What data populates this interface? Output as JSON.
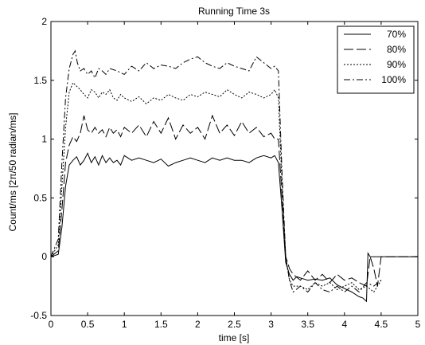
{
  "chart_data": {
    "type": "line",
    "title": "Running Time 3s",
    "xlabel": "time [s]",
    "ylabel": "Count/ms [2π/50 radian/ms]",
    "xlim": [
      0,
      5
    ],
    "ylim": [
      -0.5,
      2
    ],
    "xticks": [
      0,
      0.5,
      1,
      1.5,
      2,
      2.5,
      3,
      3.5,
      4,
      4.5,
      5
    ],
    "xtick_labels": [
      "0",
      "0.5",
      "1",
      "1.5",
      "2",
      "2.5",
      "3",
      "3.5",
      "4",
      "4.5",
      "5"
    ],
    "yticks": [
      -0.5,
      0,
      0.5,
      1,
      1.5,
      2
    ],
    "ytick_labels": [
      "-0.5",
      "0",
      "0.5",
      "1",
      "1.5",
      "2"
    ],
    "grid": false,
    "legend_position": "top-right",
    "series": [
      {
        "name": "70%",
        "dash": "solid",
        "x": [
          0,
          0.1,
          0.15,
          0.2,
          0.25,
          0.3,
          0.35,
          0.4,
          0.45,
          0.5,
          0.55,
          0.6,
          0.65,
          0.7,
          0.75,
          0.8,
          0.85,
          0.9,
          0.95,
          1.0,
          1.1,
          1.2,
          1.3,
          1.4,
          1.5,
          1.6,
          1.7,
          1.8,
          1.9,
          2.0,
          2.1,
          2.2,
          2.3,
          2.4,
          2.5,
          2.6,
          2.7,
          2.8,
          2.9,
          3.0,
          3.05,
          3.1,
          3.15,
          3.2,
          3.25,
          3.3,
          3.35,
          3.4,
          3.5,
          3.6,
          3.7,
          3.8,
          3.9,
          4.0,
          4.1,
          4.2,
          4.25,
          4.3,
          4.32,
          4.35,
          4.4,
          4.5,
          4.6,
          4.7,
          5.0
        ],
        "y": [
          0,
          0.02,
          0.25,
          0.6,
          0.78,
          0.82,
          0.85,
          0.78,
          0.82,
          0.88,
          0.8,
          0.85,
          0.78,
          0.86,
          0.8,
          0.84,
          0.8,
          0.82,
          0.78,
          0.86,
          0.82,
          0.84,
          0.82,
          0.8,
          0.83,
          0.77,
          0.8,
          0.82,
          0.84,
          0.82,
          0.8,
          0.84,
          0.82,
          0.84,
          0.82,
          0.82,
          0.8,
          0.84,
          0.86,
          0.84,
          0.86,
          0.8,
          0.4,
          -0.05,
          -0.15,
          -0.2,
          -0.17,
          -0.18,
          -0.2,
          -0.19,
          -0.2,
          -0.18,
          -0.24,
          -0.27,
          -0.3,
          -0.34,
          -0.35,
          -0.38,
          0.03,
          0.0,
          0.0,
          0.0,
          0.0,
          0.0,
          0.0
        ]
      },
      {
        "name": "80%",
        "dash": "longdash",
        "x": [
          0,
          0.1,
          0.15,
          0.2,
          0.25,
          0.3,
          0.35,
          0.4,
          0.45,
          0.5,
          0.55,
          0.6,
          0.65,
          0.7,
          0.75,
          0.8,
          0.85,
          0.9,
          0.95,
          1.0,
          1.1,
          1.2,
          1.3,
          1.4,
          1.5,
          1.6,
          1.7,
          1.8,
          1.9,
          2.0,
          2.1,
          2.2,
          2.3,
          2.4,
          2.5,
          2.6,
          2.7,
          2.8,
          2.9,
          3.0,
          3.05,
          3.1,
          3.15,
          3.2,
          3.25,
          3.3,
          3.4,
          3.5,
          3.6,
          3.7,
          3.8,
          3.9,
          4.0,
          4.1,
          4.2,
          4.3,
          4.35,
          4.4,
          4.45,
          4.5,
          4.6,
          4.7,
          5.0
        ],
        "y": [
          0,
          0.05,
          0.4,
          0.8,
          0.95,
          1.02,
          0.98,
          1.05,
          1.2,
          1.08,
          1.05,
          1.1,
          1.05,
          1.08,
          1.02,
          1.1,
          1.05,
          1.08,
          1.02,
          1.1,
          1.05,
          1.12,
          1.02,
          1.15,
          1.05,
          1.18,
          1.0,
          1.12,
          1.05,
          1.1,
          1.0,
          1.2,
          1.05,
          1.12,
          1.03,
          1.15,
          1.05,
          1.1,
          1.02,
          1.05,
          1.0,
          1.0,
          0.5,
          0.0,
          -0.1,
          -0.15,
          -0.2,
          -0.12,
          -0.2,
          -0.15,
          -0.22,
          -0.15,
          -0.2,
          -0.18,
          -0.22,
          -0.25,
          0.0,
          -0.1,
          -0.25,
          0.0,
          0.0,
          0.0,
          0.0
        ]
      },
      {
        "name": "90%",
        "dash": "dotted",
        "x": [
          0,
          0.1,
          0.15,
          0.2,
          0.25,
          0.3,
          0.35,
          0.4,
          0.45,
          0.5,
          0.55,
          0.6,
          0.65,
          0.7,
          0.75,
          0.8,
          0.85,
          0.9,
          0.95,
          1.0,
          1.1,
          1.2,
          1.3,
          1.4,
          1.5,
          1.6,
          1.7,
          1.8,
          1.9,
          2.0,
          2.1,
          2.2,
          2.3,
          2.4,
          2.5,
          2.6,
          2.7,
          2.8,
          2.9,
          3.0,
          3.05,
          3.1,
          3.15,
          3.2,
          3.25,
          3.3,
          3.4,
          3.5,
          3.6,
          3.7,
          3.8,
          3.9,
          4.0,
          4.1,
          4.2,
          4.3,
          4.4,
          4.5
        ],
        "y": [
          0,
          0.1,
          0.6,
          1.1,
          1.4,
          1.48,
          1.45,
          1.42,
          1.38,
          1.35,
          1.42,
          1.4,
          1.35,
          1.4,
          1.38,
          1.42,
          1.35,
          1.33,
          1.38,
          1.35,
          1.32,
          1.36,
          1.3,
          1.35,
          1.33,
          1.38,
          1.35,
          1.33,
          1.38,
          1.36,
          1.4,
          1.38,
          1.36,
          1.42,
          1.38,
          1.35,
          1.4,
          1.38,
          1.35,
          1.38,
          1.42,
          1.35,
          0.6,
          0.0,
          -0.2,
          -0.25,
          -0.25,
          -0.28,
          -0.22,
          -0.25,
          -0.22,
          -0.28,
          -0.25,
          -0.22,
          -0.28,
          -0.25,
          -0.3,
          -0.2
        ]
      },
      {
        "name": "100%",
        "dash": "dashdot",
        "x": [
          0,
          0.1,
          0.15,
          0.2,
          0.25,
          0.3,
          0.33,
          0.36,
          0.4,
          0.45,
          0.5,
          0.55,
          0.6,
          0.65,
          0.7,
          0.75,
          0.8,
          0.9,
          1.0,
          1.1,
          1.2,
          1.3,
          1.4,
          1.5,
          1.6,
          1.7,
          1.8,
          1.9,
          2.0,
          2.1,
          2.2,
          2.3,
          2.4,
          2.5,
          2.6,
          2.7,
          2.8,
          2.9,
          3.0,
          3.05,
          3.1,
          3.15,
          3.2,
          3.25,
          3.3,
          3.4,
          3.5,
          3.6,
          3.7,
          3.8,
          3.9,
          4.0,
          4.1,
          4.2,
          4.3,
          4.4,
          4.5
        ],
        "y": [
          0,
          0.15,
          0.8,
          1.35,
          1.6,
          1.72,
          1.75,
          1.65,
          1.58,
          1.6,
          1.55,
          1.58,
          1.52,
          1.6,
          1.58,
          1.55,
          1.6,
          1.58,
          1.55,
          1.62,
          1.58,
          1.65,
          1.6,
          1.63,
          1.62,
          1.6,
          1.65,
          1.68,
          1.7,
          1.65,
          1.62,
          1.6,
          1.65,
          1.62,
          1.6,
          1.58,
          1.7,
          1.65,
          1.6,
          1.62,
          1.58,
          0.7,
          0.0,
          -0.2,
          -0.3,
          -0.25,
          -0.3,
          -0.22,
          -0.28,
          -0.3,
          -0.25,
          -0.3,
          -0.25,
          -0.3,
          -0.22,
          -0.25,
          -0.2
        ]
      }
    ]
  }
}
